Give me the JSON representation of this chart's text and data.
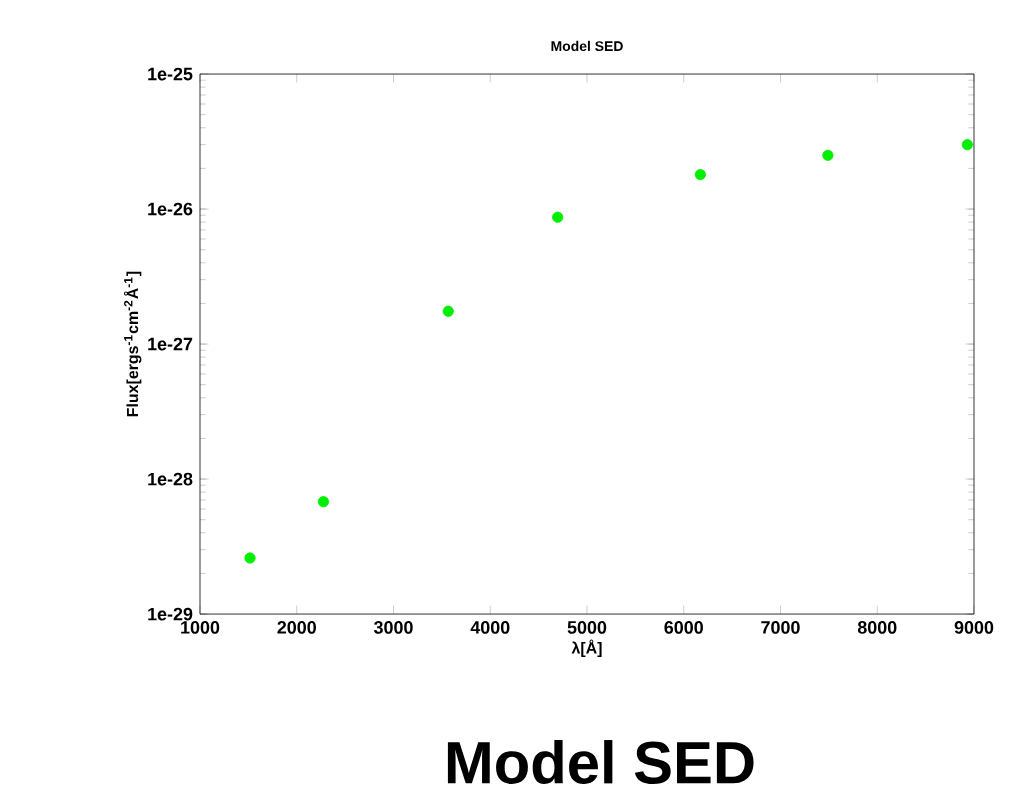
{
  "chart_data": {
    "type": "scatter",
    "title": "Model SED",
    "xlabel": "λ[Å]",
    "ylabel": "Flux[ergs$^{-1}$cm$^{-2}$Å$^{-1}$]",
    "log": "y",
    "marker": "circle",
    "grid": false,
    "x": [
      1517,
      2276,
      3566,
      4697,
      6172,
      7490,
      8931
    ],
    "series": [
      {
        "color": "#00ee00",
        "values": [
          2.6e-29,
          6.8e-29,
          1.75e-27,
          8.7e-27,
          1.8e-26,
          2.5e-26,
          3e-26
        ]
      }
    ],
    "xlim": [
      1000,
      9000
    ],
    "xticks": [
      1000,
      2000,
      3000,
      4000,
      5000,
      6000,
      7000,
      8000,
      9000
    ],
    "ylim": [
      1e-29,
      1e-25
    ],
    "yticks": [
      {
        "value": 1e-29,
        "label": "1e-29"
      },
      {
        "value": 1e-28,
        "label": "1e-28"
      },
      {
        "value": 1e-27,
        "label": "1e-27"
      },
      {
        "value": 1e-26,
        "label": "1e-26"
      },
      {
        "value": 1e-25,
        "label": "1e-25"
      }
    ],
    "annotations": [
      "Model SED"
    ]
  }
}
